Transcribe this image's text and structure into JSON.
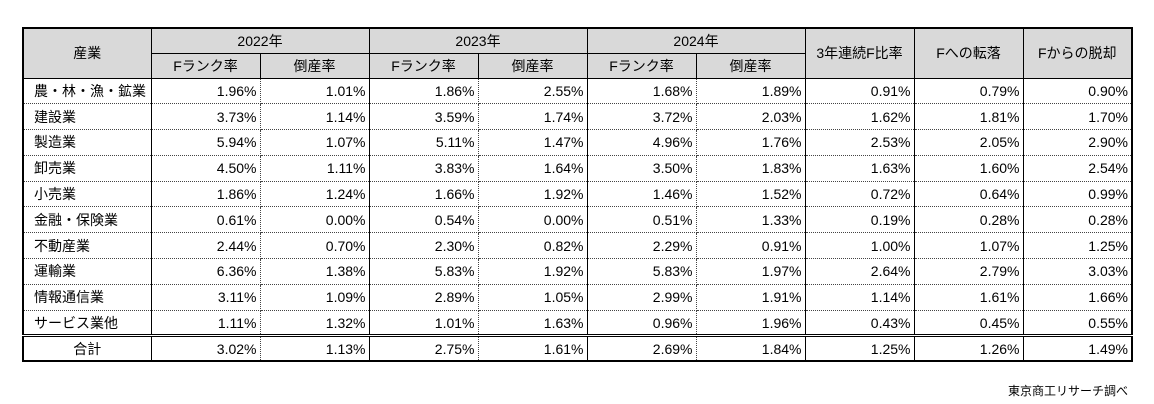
{
  "colors": {
    "header_background": "#d9d9d9",
    "border": "#000000"
  },
  "chart_data": {
    "type": "table",
    "columns": {
      "industry_header": "産業",
      "groups": [
        {
          "label": "2022年",
          "sub": [
            "Fランク率",
            "倒産率"
          ]
        },
        {
          "label": "2023年",
          "sub": [
            "Fランク率",
            "倒産率"
          ]
        },
        {
          "label": "2024年",
          "sub": [
            "Fランク率",
            "倒産率"
          ]
        }
      ],
      "extra": [
        "3年連続F比率",
        "Fへの転落",
        "Fからの脱却"
      ]
    },
    "rows": [
      {
        "label": "農・林・漁・鉱業",
        "values": [
          "1.96%",
          "1.01%",
          "1.86%",
          "2.55%",
          "1.68%",
          "1.89%",
          "0.91%",
          "0.79%",
          "0.90%"
        ]
      },
      {
        "label": "建設業",
        "values": [
          "3.73%",
          "1.14%",
          "3.59%",
          "1.74%",
          "3.72%",
          "2.03%",
          "1.62%",
          "1.81%",
          "1.70%"
        ]
      },
      {
        "label": "製造業",
        "values": [
          "5.94%",
          "1.07%",
          "5.11%",
          "1.47%",
          "4.96%",
          "1.76%",
          "2.53%",
          "2.05%",
          "2.90%"
        ]
      },
      {
        "label": "卸売業",
        "values": [
          "4.50%",
          "1.11%",
          "3.83%",
          "1.64%",
          "3.50%",
          "1.83%",
          "1.63%",
          "1.60%",
          "2.54%"
        ]
      },
      {
        "label": "小売業",
        "values": [
          "1.86%",
          "1.24%",
          "1.66%",
          "1.92%",
          "1.46%",
          "1.52%",
          "0.72%",
          "0.64%",
          "0.99%"
        ]
      },
      {
        "label": "金融・保険業",
        "values": [
          "0.61%",
          "0.00%",
          "0.54%",
          "0.00%",
          "0.51%",
          "1.33%",
          "0.19%",
          "0.28%",
          "0.28%"
        ]
      },
      {
        "label": "不動産業",
        "values": [
          "2.44%",
          "0.70%",
          "2.30%",
          "0.82%",
          "2.29%",
          "0.91%",
          "1.00%",
          "1.07%",
          "1.25%"
        ]
      },
      {
        "label": "運輸業",
        "values": [
          "6.36%",
          "1.38%",
          "5.83%",
          "1.92%",
          "5.83%",
          "1.97%",
          "2.64%",
          "2.79%",
          "3.03%"
        ]
      },
      {
        "label": "情報通信業",
        "values": [
          "3.11%",
          "1.09%",
          "2.89%",
          "1.05%",
          "2.99%",
          "1.91%",
          "1.14%",
          "1.61%",
          "1.66%"
        ]
      },
      {
        "label": "サービス業他",
        "values": [
          "1.11%",
          "1.32%",
          "1.01%",
          "1.63%",
          "0.96%",
          "1.96%",
          "0.43%",
          "0.45%",
          "0.55%"
        ]
      }
    ],
    "total": {
      "label": "合計",
      "values": [
        "3.02%",
        "1.13%",
        "2.75%",
        "1.61%",
        "2.69%",
        "1.84%",
        "1.25%",
        "1.26%",
        "1.49%"
      ]
    }
  },
  "source_note": "東京商工リサーチ調べ"
}
